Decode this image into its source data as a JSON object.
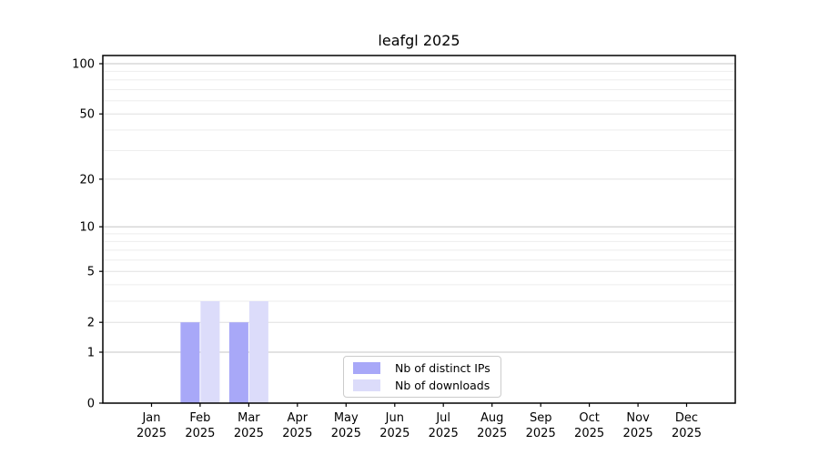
{
  "chart_data": {
    "type": "bar",
    "title": "leafgl 2025",
    "x_tick_months": [
      "Jan",
      "Feb",
      "Mar",
      "Apr",
      "May",
      "Jun",
      "Jul",
      "Aug",
      "Sep",
      "Oct",
      "Nov",
      "Dec"
    ],
    "x_tick_year": "2025",
    "y_ticks": [
      0,
      1,
      2,
      5,
      10,
      20,
      50,
      100
    ],
    "y_major_gridlines": [
      1,
      10,
      100
    ],
    "y_mid_gridlines": [
      2,
      5,
      20,
      50
    ],
    "y_minor_gridlines": [
      3,
      4,
      6,
      7,
      8,
      9,
      30,
      40,
      60,
      70,
      80,
      90
    ],
    "y_scale": "log1p",
    "ylim_top_value": 115,
    "grid": true,
    "legend_position": "inside-bottom-center",
    "series": [
      {
        "name": "Nb of distinct IPs",
        "color": "#a8a8f8",
        "values": [
          0,
          2,
          2,
          0,
          0,
          0,
          0,
          0,
          0,
          0,
          0,
          0
        ]
      },
      {
        "name": "Nb of downloads",
        "color": "#dcdcfa",
        "values": [
          0,
          3,
          3,
          0,
          0,
          0,
          0,
          0,
          0,
          0,
          0,
          0
        ]
      }
    ],
    "colors": {
      "axis": "#000000",
      "grid_major": "#c6c6c6",
      "grid_mid": "#e0e0e0",
      "grid_minor": "#eeeeee",
      "tick_label": "#000000"
    }
  }
}
